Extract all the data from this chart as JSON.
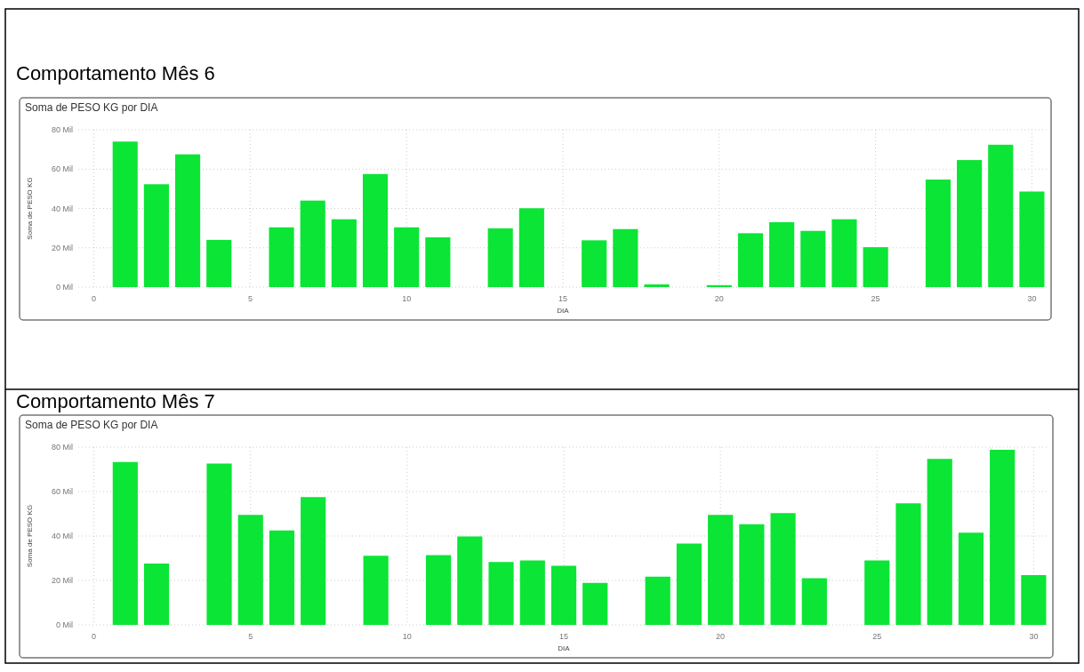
{
  "chart_data": [
    {
      "type": "bar",
      "title": "Comportamento Mês 6",
      "subtitle": "Soma de PESO KG por DIA",
      "xlabel": "DIA",
      "ylabel": "Soma de PESO KG",
      "color": "#0be535",
      "grid": true,
      "x": [
        1,
        2,
        3,
        4,
        6,
        7,
        8,
        9,
        10,
        11,
        13,
        14,
        16,
        17,
        18,
        20,
        21,
        22,
        23,
        24,
        25,
        27,
        28,
        29,
        30
      ],
      "values": [
        74,
        52.3,
        67.5,
        24,
        30.4,
        44,
        34.5,
        57.5,
        30.4,
        25.3,
        29.9,
        40.1,
        23.8,
        29.5,
        1.4,
        1,
        27.4,
        33,
        28.6,
        34.5,
        20.3,
        54.7,
        64.6,
        72.4,
        48.6
      ],
      "xlim": [
        -0.5,
        30.5
      ],
      "xticks": [
        0,
        5,
        10,
        15,
        20,
        25,
        30
      ],
      "ylim": [
        0,
        80
      ],
      "yticks": [
        {
          "value": 0,
          "label": "0 Mil"
        },
        {
          "value": 20,
          "label": "20 Mil"
        },
        {
          "value": 40,
          "label": "40 Mil"
        },
        {
          "value": 60,
          "label": "60 Mil"
        },
        {
          "value": 80,
          "label": "80 Mil"
        }
      ]
    },
    {
      "type": "bar",
      "title": "Comportamento Mês 7",
      "subtitle": "Soma de PESO KG por DIA",
      "xlabel": "DIA",
      "ylabel": "Soma de PESO KG",
      "color": "#0be535",
      "grid": true,
      "x": [
        1,
        2,
        4,
        5,
        6,
        7,
        9,
        11,
        12,
        13,
        14,
        15,
        16,
        18,
        19,
        20,
        21,
        22,
        23,
        25,
        26,
        27,
        28,
        29,
        30
      ],
      "values": [
        73.3,
        27.6,
        72.6,
        49.5,
        42.5,
        57.5,
        31.1,
        31.4,
        39.8,
        28.3,
        29,
        26.6,
        18.9,
        21.7,
        36.6,
        49.5,
        45.3,
        50.3,
        21,
        29,
        54.7,
        74.7,
        41.5,
        78.8,
        22.4
      ],
      "xlim": [
        -0.5,
        30.5
      ],
      "xticks": [
        0,
        5,
        10,
        15,
        20,
        25,
        30
      ],
      "ylim": [
        0,
        80
      ],
      "yticks": [
        {
          "value": 0,
          "label": "0 Mil"
        },
        {
          "value": 20,
          "label": "20 Mil"
        },
        {
          "value": 40,
          "label": "40 Mil"
        },
        {
          "value": 60,
          "label": "60 Mil"
        },
        {
          "value": 80,
          "label": "80 Mil"
        }
      ]
    }
  ]
}
